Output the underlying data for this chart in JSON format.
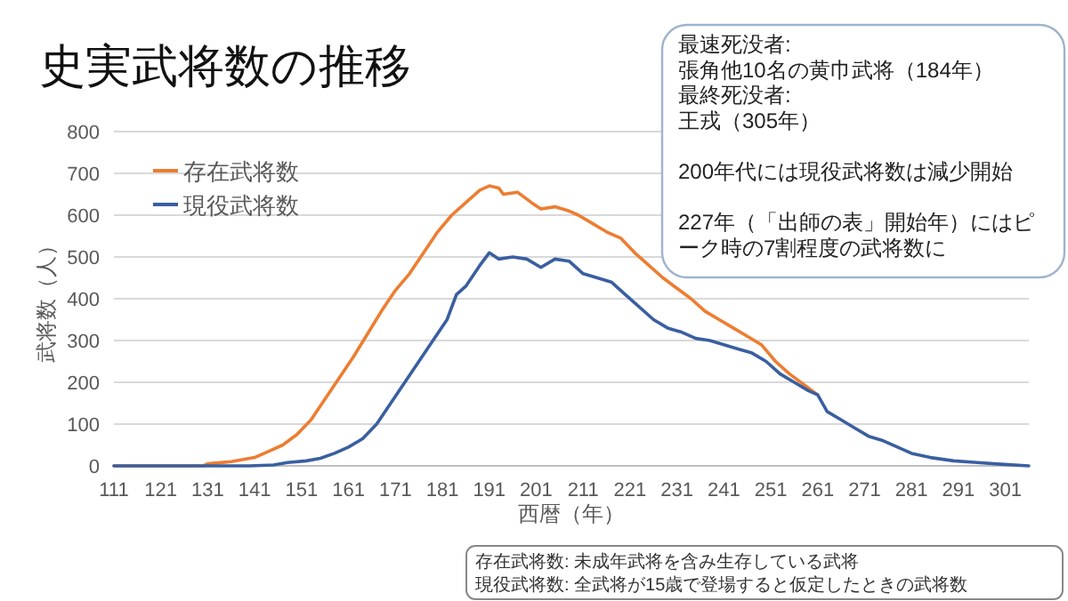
{
  "chart_data": {
    "type": "line",
    "title": "史実武将数の推移",
    "xlabel": "西暦（年）",
    "ylabel": "武将数（人）",
    "xlim": [
      111,
      306
    ],
    "ylim": [
      0,
      800
    ],
    "xticks": [
      111,
      121,
      131,
      141,
      151,
      161,
      171,
      181,
      191,
      201,
      211,
      221,
      231,
      241,
      251,
      261,
      271,
      281,
      291,
      301
    ],
    "yticks": [
      0,
      100,
      200,
      300,
      400,
      500,
      600,
      700,
      800
    ],
    "grid": "y",
    "legend": "top left",
    "marker": "none",
    "line_style": "solid",
    "series": [
      {
        "name": "存在武将数",
        "color": "#ed7d31",
        "x": [
          111,
          120,
          130,
          131,
          136,
          141,
          144,
          147,
          150,
          153,
          156,
          159,
          162,
          165,
          168,
          171,
          174,
          177,
          180,
          183,
          186,
          189,
          191,
          193,
          194,
          197,
          200,
          202,
          205,
          208,
          210,
          213,
          216,
          219,
          222,
          225,
          228,
          231,
          234,
          237,
          240,
          243,
          246,
          249,
          252,
          255,
          258,
          261
        ],
        "values": [
          0,
          0,
          0,
          5,
          10,
          20,
          35,
          50,
          75,
          110,
          160,
          210,
          260,
          315,
          370,
          420,
          460,
          510,
          560,
          600,
          630,
          660,
          670,
          665,
          650,
          655,
          630,
          615,
          620,
          610,
          600,
          580,
          560,
          545,
          510,
          480,
          450,
          425,
          400,
          370,
          350,
          330,
          310,
          290,
          250,
          220,
          195,
          170
        ]
      },
      {
        "name": "現役武将数",
        "color": "#3a5fa0",
        "x": [
          111,
          120,
          130,
          140,
          145,
          148,
          152,
          155,
          158,
          161,
          164,
          167,
          170,
          173,
          176,
          179,
          182,
          184,
          186,
          189,
          191,
          193,
          196,
          199,
          202,
          205,
          208,
          211,
          214,
          217,
          220,
          223,
          226,
          229,
          232,
          235,
          238,
          241,
          244,
          247,
          250,
          253,
          256,
          259,
          261,
          263,
          266,
          269,
          272,
          275,
          278,
          281,
          285,
          290,
          295,
          300,
          306
        ],
        "values": [
          0,
          0,
          0,
          0,
          2,
          8,
          12,
          18,
          30,
          45,
          65,
          100,
          150,
          200,
          250,
          300,
          350,
          410,
          430,
          480,
          510,
          495,
          500,
          495,
          475,
          495,
          490,
          460,
          450,
          440,
          410,
          380,
          350,
          330,
          320,
          305,
          300,
          290,
          280,
          270,
          250,
          220,
          200,
          180,
          170,
          130,
          110,
          90,
          70,
          60,
          45,
          30,
          20,
          12,
          8,
          4,
          0
        ]
      }
    ],
    "annotations": [
      "最速死没者:",
      "張角他10名の黄巾武将（184年）",
      "最終死没者:",
      "王戎（305年）",
      "200年代には現役武将数は減少開始",
      "227年（「出師の表」開始年）にはピーク時の7割程度の武将数に",
      "存在武将数: 未成年武将を含み生存している武将",
      "現役武将数: 全武将が15歳で登場すると仮定したときの武将数"
    ]
  }
}
